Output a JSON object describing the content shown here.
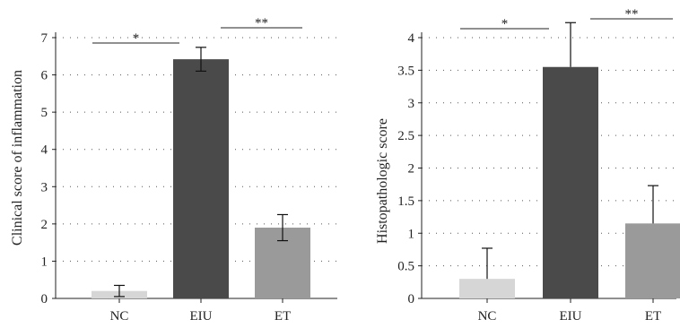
{
  "chart_data": [
    {
      "type": "bar",
      "categories": [
        "NC",
        "EIU",
        "ET"
      ],
      "values": [
        0.2,
        6.42,
        1.9
      ],
      "errors": [
        0.15,
        0.32,
        0.35
      ],
      "colors": [
        "#d6d6d6",
        "#4a4a4a",
        "#9a9a9a"
      ],
      "ylabel": "Clinical score of inflammation",
      "ylim": [
        0,
        7
      ],
      "yticks": [
        "0",
        "1",
        "2",
        "3",
        "4",
        "5",
        "6",
        "7"
      ],
      "ytick_values": [
        0,
        1,
        2,
        3,
        4,
        5,
        6,
        7
      ],
      "grid": "dotted-horizontal",
      "significance": [
        {
          "label": "*",
          "from": "NC",
          "to": "EIU",
          "y": 6.85
        },
        {
          "label": "**",
          "from": "EIU",
          "to": "ET",
          "y": 7.0
        }
      ]
    },
    {
      "type": "bar",
      "categories": [
        "NC",
        "EIU",
        "ET"
      ],
      "values": [
        0.3,
        3.55,
        1.15
      ],
      "errors": [
        0.47,
        0.68,
        0.58
      ],
      "colors": [
        "#d6d6d6",
        "#4a4a4a",
        "#9a9a9a"
      ],
      "ylabel": "Histopathologic score",
      "ylim": [
        0,
        4.2
      ],
      "yticks": [
        "0",
        "0.5",
        "1",
        "1.5",
        "2",
        "2.5",
        "3",
        "3.5",
        "4"
      ],
      "ytick_values": [
        0,
        0.5,
        1,
        1.5,
        2,
        2.5,
        3,
        3.5,
        4
      ],
      "grid": "dotted-horizontal",
      "significance": [
        {
          "label": "*",
          "from": "NC",
          "to": "EIU",
          "y": 4.15
        },
        {
          "label": "**",
          "from": "EIU",
          "to": "ET",
          "y": 4.3
        }
      ]
    }
  ]
}
